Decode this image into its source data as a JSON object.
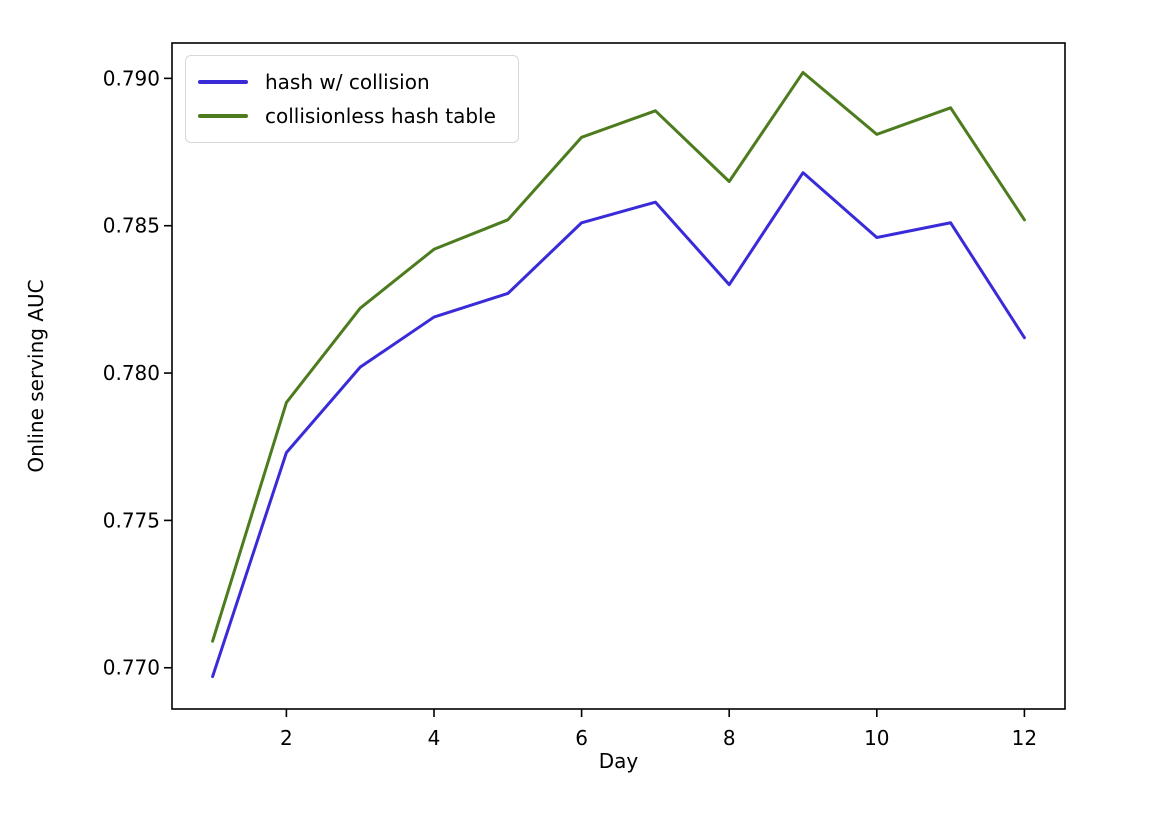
{
  "chart_data": {
    "type": "line",
    "xlabel": "Day",
    "ylabel": "Online serving AUC",
    "x": [
      1,
      2,
      3,
      4,
      5,
      6,
      7,
      8,
      9,
      10,
      11,
      12
    ],
    "series": [
      {
        "name": "hash w/ collision",
        "color": "#3a2bd8",
        "values": [
          0.7697,
          0.7773,
          0.7802,
          0.7819,
          0.7827,
          0.7851,
          0.7858,
          0.783,
          0.7868,
          0.7846,
          0.7851,
          0.7812
        ]
      },
      {
        "name": "collisionless hash table",
        "color": "#4d7c1f",
        "values": [
          0.7709,
          0.779,
          0.7822,
          0.7842,
          0.7852,
          0.788,
          0.7889,
          0.7865,
          0.7902,
          0.7881,
          0.789,
          0.7852
        ]
      }
    ],
    "xticks": [
      2,
      4,
      6,
      8,
      10,
      12
    ],
    "xtick_labels": [
      "2",
      "4",
      "6",
      "8",
      "10",
      "12"
    ],
    "yticks": [
      0.77,
      0.775,
      0.78,
      0.785,
      0.79
    ],
    "ytick_labels": [
      "0.770",
      "0.775",
      "0.780",
      "0.785",
      "0.790"
    ],
    "xlim": [
      0.45,
      12.55
    ],
    "ylim": [
      0.7686,
      0.7912
    ],
    "grid": false,
    "legend_position": "upper left",
    "axis_color": "#000000"
  }
}
